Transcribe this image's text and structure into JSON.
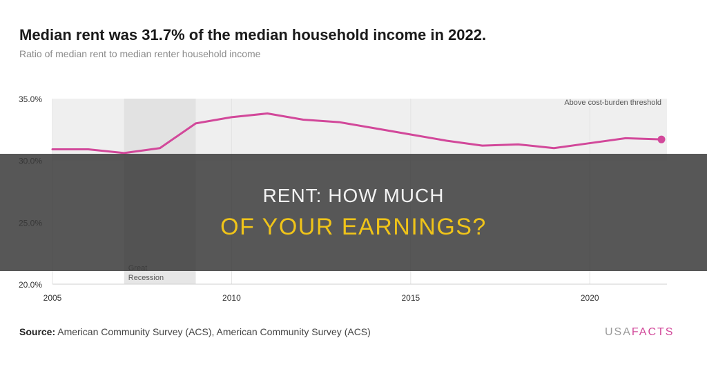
{
  "chart_title": "Median rent was 31.7% of the median household income in 2022.",
  "chart_subtitle": "Ratio of median rent to median renter household income",
  "source_label": "Source:",
  "source_text": " American Community Survey (ACS), American Community Survey (ACS)",
  "logo": {
    "part1": "USA",
    "part2": "FACTS"
  },
  "overlay": {
    "line1": "RENT: HOW MUCH",
    "line2": "OF YOUR EARNINGS?"
  },
  "colors": {
    "line": "#d2489a",
    "threshold_band": "#efefef",
    "recession_band": "#dddddd",
    "overlay_accent": "#f0c419",
    "logo_accent": "#d2489a"
  },
  "chart_data": {
    "type": "line",
    "x": [
      2005,
      2006,
      2007,
      2008,
      2009,
      2010,
      2011,
      2012,
      2013,
      2014,
      2015,
      2016,
      2017,
      2018,
      2019,
      2020,
      2021,
      2022
    ],
    "series": [
      {
        "values": [
          30.9,
          30.9,
          30.6,
          31.0,
          33.0,
          33.5,
          33.8,
          33.3,
          33.1,
          32.6,
          32.1,
          31.6,
          31.2,
          31.3,
          31.0,
          31.4,
          31.8,
          31.7
        ]
      }
    ],
    "xlim": [
      2005,
      2022
    ],
    "ylim": [
      20,
      35
    ],
    "y_ticks": [
      "20.0%",
      "25.0%",
      "30.0%",
      "35.0%"
    ],
    "y_tick_values": [
      20,
      25,
      30,
      35
    ],
    "x_ticks": [
      "2005",
      "2010",
      "2015",
      "2020"
    ],
    "x_tick_values": [
      2005,
      2010,
      2015,
      2020
    ],
    "grid": true,
    "bands": [
      {
        "label": "Above cost-burden threshold",
        "axis": "y",
        "from": 30,
        "to": 35
      },
      {
        "label": "Great Recession",
        "axis": "x",
        "from": 2007,
        "to": 2009
      }
    ]
  }
}
